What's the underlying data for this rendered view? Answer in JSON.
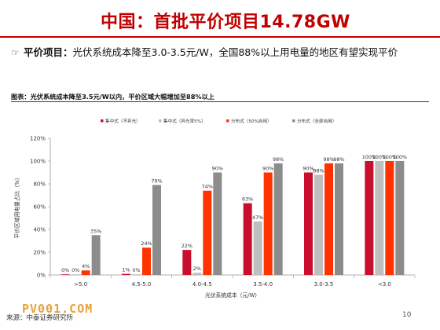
{
  "header": {
    "title": "中国：首批平价项目14.78GW"
  },
  "bullet": {
    "icon": "pointing-hand-icon",
    "glyph": "☞",
    "head": "平价项目：",
    "text": "光伏系统成本降至3.0-3.5元/W，全国88%以上用电量的地区有望实现平价"
  },
  "figure": {
    "caption": "图表：光伏系统成本降至3.5元/W以内，平价区域大幅增加至88%以上"
  },
  "footer": {
    "source": "来源：中泰证券研究所",
    "page": "10",
    "watermark": "PV001.COM"
  },
  "colors": {
    "title": "#c00000",
    "s1": "#c8102e",
    "s2": "#bfbfbf",
    "s3": "#ff3300",
    "s4": "#8c8c8c"
  },
  "chart_data": {
    "type": "bar",
    "categories": [
      ">5.0",
      "4.5-5.0",
      "4.0-4.5",
      "3.5-4.0",
      "3.0-3.5",
      "<3.0"
    ],
    "series": [
      {
        "name": "集中式（不弃光）",
        "values": [
          0,
          1,
          22,
          63,
          90,
          100
        ],
        "labels": [
          "0%",
          "1%",
          "22%",
          "63%",
          "90%",
          "100%"
        ],
        "color": "#c8102e"
      },
      {
        "name": "集中式（弃光率5%）",
        "values": [
          0,
          0,
          2,
          47,
          88,
          100
        ],
        "labels": [
          "0%",
          "0%",
          "2%",
          "47%",
          "88%",
          "100%"
        ],
        "color": "#bfbfbf"
      },
      {
        "name": "分布式（50%自用）",
        "values": [
          4,
          24,
          74,
          90,
          98,
          100
        ],
        "labels": [
          "4%",
          "24%",
          "74%",
          "90%",
          "98%",
          "100%"
        ],
        "color": "#ff3300"
      },
      {
        "name": "分布式（全部自用）",
        "values": [
          35,
          79,
          90,
          98,
          98,
          100
        ],
        "labels": [
          "35%",
          "79%",
          "90%",
          "98%",
          "98%",
          "100%"
        ],
        "color": "#8c8c8c"
      }
    ],
    "ylim": [
      0,
      120
    ],
    "yticks": [
      "0%",
      "20%",
      "40%",
      "60%",
      "80%",
      "100%",
      "120%"
    ],
    "xlabel": "光伏系统成本（元/W）",
    "ylabel": "平价区域用电量占比（%）",
    "legend_position": "top",
    "grid": false
  }
}
